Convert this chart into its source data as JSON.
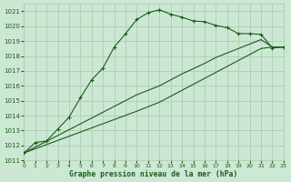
{
  "title": "Graphe pression niveau de la mer (hPa)",
  "bg_color": "#cce8d4",
  "grid_color": "#a8c8a8",
  "line_color": "#1a5c1a",
  "xlim": [
    0,
    23
  ],
  "ylim": [
    1011,
    1021.5
  ],
  "yticks": [
    1011,
    1012,
    1013,
    1014,
    1015,
    1016,
    1017,
    1018,
    1019,
    1020,
    1021
  ],
  "xticks": [
    0,
    1,
    2,
    3,
    4,
    5,
    6,
    7,
    8,
    9,
    10,
    11,
    12,
    13,
    14,
    15,
    16,
    17,
    18,
    19,
    20,
    21,
    22,
    23
  ],
  "series_main": {
    "x": [
      0,
      1,
      2,
      3,
      4,
      5,
      6,
      7,
      8,
      9,
      10,
      11,
      12,
      13,
      14,
      15,
      16,
      17,
      18,
      19,
      20,
      21,
      22,
      23
    ],
    "y": [
      1011.5,
      1012.2,
      1012.3,
      1013.1,
      1013.9,
      1015.2,
      1016.4,
      1017.2,
      1018.6,
      1019.5,
      1020.45,
      1020.9,
      1021.1,
      1020.8,
      1020.6,
      1020.35,
      1020.3,
      1020.05,
      1019.9,
      1019.5,
      1019.5,
      1019.45,
      1018.55,
      1018.6
    ]
  },
  "series_diag1": {
    "x": [
      0,
      10,
      11,
      12,
      13,
      14,
      15,
      16,
      17,
      18,
      19,
      20,
      21,
      22,
      23
    ],
    "y": [
      1011.5,
      1015.4,
      1015.7,
      1016.0,
      1016.4,
      1016.8,
      1017.15,
      1017.5,
      1017.9,
      1018.2,
      1018.5,
      1018.8,
      1019.1,
      1018.6,
      1018.6
    ]
  },
  "series_diag2": {
    "x": [
      0,
      10,
      11,
      12,
      13,
      14,
      15,
      16,
      17,
      18,
      19,
      20,
      21,
      22,
      23
    ],
    "y": [
      1011.5,
      1014.3,
      1014.6,
      1014.9,
      1015.3,
      1015.7,
      1016.1,
      1016.5,
      1016.9,
      1017.3,
      1017.7,
      1018.1,
      1018.5,
      1018.6,
      1018.6
    ]
  }
}
